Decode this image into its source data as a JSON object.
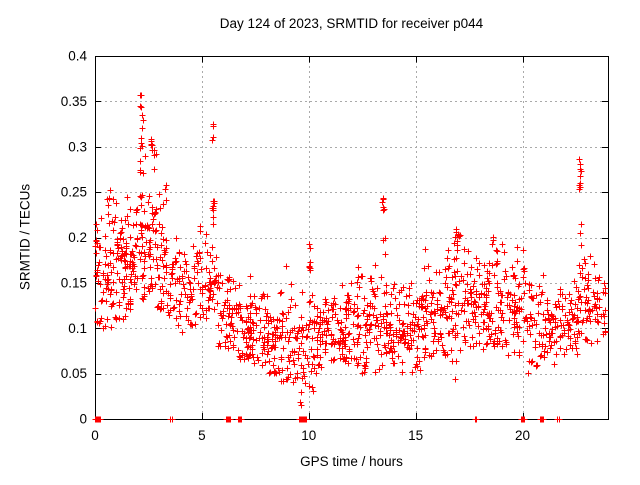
{
  "chart_data": {
    "type": "scatter",
    "title": "Day 124 of 2023, SRMTID for receiver p044",
    "xlabel": "GPS time / hours",
    "ylabel": "SRMTID / TECUs",
    "series_name": "SRMTID",
    "xlim": [
      0,
      24
    ],
    "ylim": [
      0,
      0.4
    ],
    "xticks": [
      0,
      5,
      10,
      15,
      20
    ],
    "xtick_labels": [
      "0",
      "5",
      "10",
      "15",
      "20"
    ],
    "yticks": [
      0,
      0.05,
      0.1,
      0.15,
      0.2,
      0.25,
      0.3,
      0.35,
      0.4
    ],
    "ytick_labels": [
      "0",
      "0.05",
      "0.1",
      "0.15",
      "0.2",
      "0.25",
      "0.3",
      "0.35",
      "0.4"
    ],
    "grid": true,
    "grid_style": "dashed",
    "legend": false,
    "marker": {
      "shape": "plus",
      "size": 7,
      "color": "#ff0000"
    },
    "colors": {
      "points": "#ff0000",
      "grid": "#aaaaaa",
      "axis": "#000000",
      "text": "#000000",
      "background": "#ffffff"
    },
    "seed": 42,
    "bands_format": [
      "x_start",
      "x_end",
      "n_points",
      "y_min",
      "y_max",
      "y_center"
    ],
    "bands": [
      [
        0.0,
        0.4,
        26,
        0.1,
        0.26,
        0.16
      ],
      [
        0.4,
        0.9,
        40,
        0.1,
        0.27,
        0.17
      ],
      [
        0.9,
        1.4,
        42,
        0.11,
        0.25,
        0.16
      ],
      [
        1.4,
        1.9,
        46,
        0.12,
        0.27,
        0.17
      ],
      [
        1.9,
        2.35,
        40,
        0.13,
        0.3,
        0.19
      ],
      [
        2.35,
        2.85,
        38,
        0.14,
        0.28,
        0.19
      ],
      [
        2.85,
        3.3,
        32,
        0.12,
        0.26,
        0.17
      ],
      [
        3.3,
        3.8,
        30,
        0.1,
        0.21,
        0.15
      ],
      [
        3.8,
        4.3,
        28,
        0.09,
        0.19,
        0.14
      ],
      [
        4.3,
        4.8,
        26,
        0.1,
        0.2,
        0.14
      ],
      [
        4.8,
        5.3,
        26,
        0.11,
        0.22,
        0.15
      ],
      [
        5.3,
        5.7,
        26,
        0.12,
        0.2,
        0.15
      ],
      [
        5.7,
        6.2,
        30,
        0.08,
        0.17,
        0.12
      ],
      [
        6.2,
        6.7,
        32,
        0.07,
        0.16,
        0.11
      ],
      [
        6.7,
        7.2,
        34,
        0.06,
        0.15,
        0.1
      ],
      [
        7.2,
        7.7,
        34,
        0.06,
        0.16,
        0.1
      ],
      [
        7.7,
        8.2,
        34,
        0.05,
        0.14,
        0.09
      ],
      [
        8.2,
        8.7,
        34,
        0.05,
        0.15,
        0.09
      ],
      [
        8.7,
        9.2,
        30,
        0.04,
        0.17,
        0.09
      ],
      [
        9.2,
        9.7,
        28,
        0.04,
        0.13,
        0.08
      ],
      [
        9.7,
        10.2,
        28,
        0.03,
        0.15,
        0.08
      ],
      [
        10.2,
        10.7,
        32,
        0.05,
        0.13,
        0.09
      ],
      [
        10.7,
        11.2,
        32,
        0.06,
        0.14,
        0.1
      ],
      [
        11.2,
        11.7,
        32,
        0.06,
        0.15,
        0.1
      ],
      [
        11.7,
        12.2,
        32,
        0.06,
        0.16,
        0.1
      ],
      [
        12.2,
        12.7,
        34,
        0.05,
        0.17,
        0.1
      ],
      [
        12.7,
        13.2,
        34,
        0.05,
        0.18,
        0.11
      ],
      [
        13.2,
        13.7,
        30,
        0.05,
        0.17,
        0.1
      ],
      [
        13.7,
        14.2,
        32,
        0.04,
        0.15,
        0.09
      ],
      [
        14.2,
        14.7,
        32,
        0.05,
        0.15,
        0.1
      ],
      [
        14.7,
        15.2,
        32,
        0.05,
        0.16,
        0.1
      ],
      [
        15.2,
        15.7,
        34,
        0.06,
        0.2,
        0.11
      ],
      [
        15.7,
        16.2,
        34,
        0.06,
        0.17,
        0.11
      ],
      [
        16.2,
        16.7,
        34,
        0.07,
        0.2,
        0.12
      ],
      [
        16.7,
        17.2,
        36,
        0.04,
        0.21,
        0.13
      ],
      [
        17.2,
        17.7,
        34,
        0.04,
        0.19,
        0.12
      ],
      [
        17.7,
        18.2,
        32,
        0.05,
        0.18,
        0.12
      ],
      [
        18.2,
        18.7,
        34,
        0.08,
        0.2,
        0.13
      ],
      [
        18.7,
        19.2,
        34,
        0.08,
        0.2,
        0.13
      ],
      [
        19.2,
        19.7,
        32,
        0.07,
        0.19,
        0.12
      ],
      [
        19.7,
        20.2,
        30,
        0.04,
        0.19,
        0.12
      ],
      [
        20.2,
        20.7,
        26,
        0.05,
        0.15,
        0.1
      ],
      [
        20.7,
        21.2,
        28,
        0.06,
        0.16,
        0.1
      ],
      [
        21.2,
        21.7,
        28,
        0.06,
        0.14,
        0.1
      ],
      [
        21.7,
        22.2,
        28,
        0.07,
        0.15,
        0.1
      ],
      [
        22.2,
        22.6,
        24,
        0.07,
        0.16,
        0.11
      ],
      [
        22.6,
        22.9,
        18,
        0.08,
        0.18,
        0.13
      ],
      [
        22.9,
        23.4,
        30,
        0.08,
        0.2,
        0.13
      ],
      [
        23.4,
        23.85,
        26,
        0.08,
        0.18,
        0.12
      ]
    ],
    "spike_columns_format": [
      "x",
      "y_low",
      "y_high",
      "n_points"
    ],
    "spike_columns": [
      [
        0.05,
        0.13,
        0.2,
        5
      ],
      [
        2.12,
        0.27,
        0.358,
        10
      ],
      [
        2.2,
        0.295,
        0.34,
        6
      ],
      [
        2.62,
        0.28,
        0.31,
        6
      ],
      [
        2.8,
        0.275,
        0.3,
        4
      ],
      [
        3.3,
        0.24,
        0.26,
        3
      ],
      [
        5.5,
        0.295,
        0.33,
        5
      ],
      [
        5.52,
        0.215,
        0.24,
        9
      ],
      [
        9.62,
        0.015,
        0.03,
        3
      ],
      [
        10.05,
        0.155,
        0.21,
        7
      ],
      [
        13.48,
        0.21,
        0.245,
        6
      ],
      [
        13.52,
        0.18,
        0.2,
        3
      ],
      [
        16.9,
        0.19,
        0.21,
        3
      ],
      [
        18.6,
        0.19,
        0.205,
        3
      ],
      [
        22.68,
        0.245,
        0.3,
        9
      ],
      [
        22.72,
        0.19,
        0.215,
        3
      ]
    ],
    "zero_runs_format": [
      "x_start",
      "x_end",
      "n_points"
    ],
    "zero_runs": [
      [
        0.02,
        0.25,
        9
      ],
      [
        3.52,
        3.58,
        2
      ],
      [
        6.12,
        6.3,
        7
      ],
      [
        6.68,
        6.85,
        7
      ],
      [
        9.55,
        9.85,
        11
      ],
      [
        17.76,
        17.84,
        2
      ],
      [
        19.92,
        20.08,
        7
      ],
      [
        20.8,
        20.95,
        7
      ],
      [
        21.62,
        21.72,
        2
      ]
    ]
  }
}
